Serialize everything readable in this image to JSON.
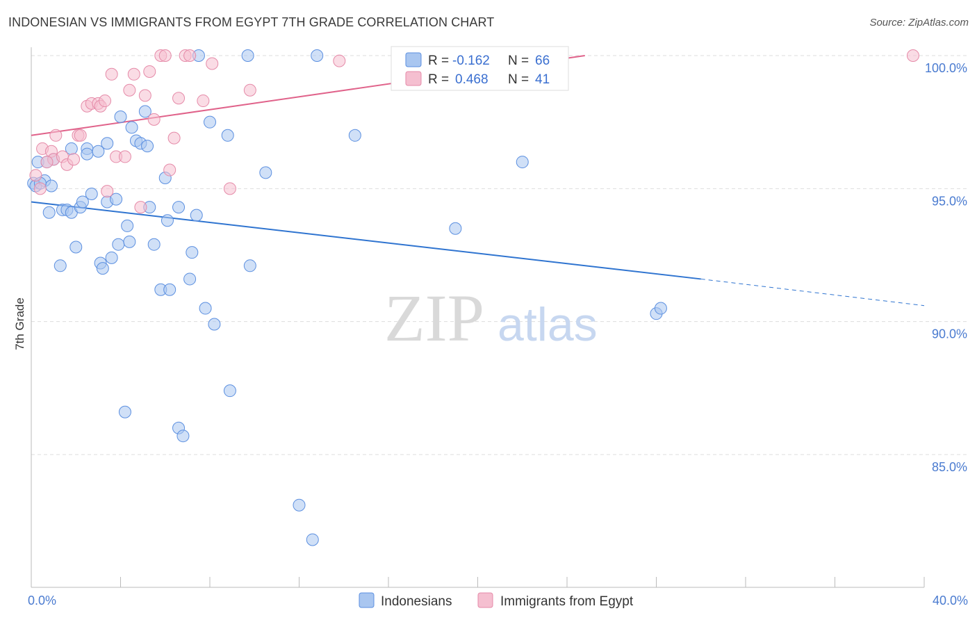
{
  "title": "INDONESIAN VS IMMIGRANTS FROM EGYPT 7TH GRADE CORRELATION CHART",
  "source": "Source: ZipAtlas.com",
  "watermark": {
    "zip": "ZIP",
    "atlas": "atlas"
  },
  "colors": {
    "blue": "#5b8fe0",
    "blue_fill": "#a9c6f0",
    "blue_line": "#2f74d0",
    "pink": "#e58aa8",
    "pink_fill": "#f5bfd0",
    "pink_line": "#e0628a",
    "axis_label": "#4a7bd0",
    "grid": "#dddddd"
  },
  "legend": {
    "rows": [
      {
        "r_label": "R =",
        "r_value": "-0.162",
        "n_label": "N =",
        "n_value": "66",
        "series": "blue"
      },
      {
        "r_label": "R =",
        "r_value": "0.468",
        "n_label": "N =",
        "n_value": "41",
        "series": "pink"
      }
    ]
  },
  "bottom_legend": [
    {
      "label": "Indonesians",
      "series": "blue"
    },
    {
      "label": "Immigrants from Egypt",
      "series": "pink"
    }
  ],
  "chart_data": {
    "type": "scatter",
    "ylabel": "7th Grade",
    "xlim": [
      0,
      40
    ],
    "ylim": [
      80.0,
      100.7
    ],
    "x_tick_labels": [
      {
        "value": 0,
        "label": "0.0%"
      },
      {
        "value": 40,
        "label": "40.0%"
      }
    ],
    "y_ticks": [
      {
        "value": 100,
        "label": "100.0%"
      },
      {
        "value": 95,
        "label": "95.0%"
      },
      {
        "value": 90,
        "label": "90.0%"
      },
      {
        "value": 85,
        "label": "85.0%"
      }
    ],
    "series": [
      {
        "name": "Indonesians",
        "color": "blue",
        "trend": {
          "x": [
            0,
            30
          ],
          "y": [
            94.5,
            91.6
          ]
        },
        "trend_dashed": {
          "x": [
            30,
            40
          ],
          "y": [
            91.6,
            90.6
          ]
        },
        "points": [
          [
            0.1,
            95.2
          ],
          [
            0.2,
            95.1
          ],
          [
            0.3,
            96.0
          ],
          [
            0.6,
            95.3
          ],
          [
            0.7,
            96.0
          ],
          [
            0.8,
            94.1
          ],
          [
            0.9,
            95.1
          ],
          [
            1.3,
            92.1
          ],
          [
            1.4,
            94.2
          ],
          [
            1.6,
            94.2
          ],
          [
            1.8,
            96.5
          ],
          [
            1.8,
            94.1
          ],
          [
            2.0,
            92.8
          ],
          [
            2.2,
            94.3
          ],
          [
            2.3,
            94.5
          ],
          [
            2.5,
            96.5
          ],
          [
            2.5,
            96.3
          ],
          [
            2.7,
            94.8
          ],
          [
            3.1,
            92.2
          ],
          [
            3.2,
            92.0
          ],
          [
            3.4,
            94.5
          ],
          [
            3.4,
            96.7
          ],
          [
            3.6,
            92.4
          ],
          [
            3.8,
            94.6
          ],
          [
            3.9,
            92.9
          ],
          [
            4.0,
            97.7
          ],
          [
            4.2,
            86.6
          ],
          [
            4.3,
            93.6
          ],
          [
            4.4,
            93.0
          ],
          [
            4.5,
            97.3
          ],
          [
            4.7,
            96.8
          ],
          [
            4.9,
            96.7
          ],
          [
            5.1,
            97.9
          ],
          [
            5.2,
            96.6
          ],
          [
            5.3,
            94.3
          ],
          [
            5.5,
            92.9
          ],
          [
            5.8,
            91.2
          ],
          [
            6.0,
            95.4
          ],
          [
            6.1,
            93.8
          ],
          [
            6.2,
            91.2
          ],
          [
            6.6,
            94.3
          ],
          [
            6.6,
            86.0
          ],
          [
            6.8,
            85.7
          ],
          [
            7.1,
            91.6
          ],
          [
            7.2,
            92.6
          ],
          [
            7.4,
            94.0
          ],
          [
            7.5,
            100.0
          ],
          [
            7.8,
            90.5
          ],
          [
            8.0,
            97.5
          ],
          [
            8.2,
            89.9
          ],
          [
            8.8,
            97.0
          ],
          [
            8.9,
            87.4
          ],
          [
            9.7,
            100.0
          ],
          [
            9.8,
            92.1
          ],
          [
            10.5,
            95.6
          ],
          [
            12.0,
            83.1
          ],
          [
            12.6,
            81.8
          ],
          [
            12.8,
            100.0
          ],
          [
            14.5,
            97.0
          ],
          [
            19.0,
            93.5
          ],
          [
            22.0,
            96.0
          ],
          [
            28.0,
            90.3
          ],
          [
            28.2,
            90.5
          ],
          [
            0.4,
            95.2
          ],
          [
            1.0,
            96.1
          ],
          [
            3.0,
            96.4
          ]
        ]
      },
      {
        "name": "Immigrants from Egypt",
        "color": "pink",
        "trend": {
          "x": [
            0,
            24.8
          ],
          "y": [
            97.0,
            100.0
          ]
        },
        "points": [
          [
            0.2,
            95.5
          ],
          [
            0.4,
            95.0
          ],
          [
            0.5,
            96.5
          ],
          [
            0.9,
            96.4
          ],
          [
            1.0,
            96.1
          ],
          [
            1.1,
            97.0
          ],
          [
            1.4,
            96.2
          ],
          [
            1.6,
            95.9
          ],
          [
            1.9,
            96.1
          ],
          [
            2.1,
            97.0
          ],
          [
            2.2,
            97.0
          ],
          [
            2.5,
            98.1
          ],
          [
            2.7,
            98.2
          ],
          [
            3.0,
            98.2
          ],
          [
            3.1,
            98.1
          ],
          [
            3.3,
            98.3
          ],
          [
            3.4,
            94.9
          ],
          [
            3.6,
            99.3
          ],
          [
            3.8,
            96.2
          ],
          [
            4.2,
            96.2
          ],
          [
            4.4,
            98.7
          ],
          [
            4.6,
            99.3
          ],
          [
            4.9,
            94.3
          ],
          [
            5.1,
            98.5
          ],
          [
            5.3,
            99.4
          ],
          [
            5.5,
            97.6
          ],
          [
            5.8,
            100.0
          ],
          [
            6.0,
            100.0
          ],
          [
            6.2,
            95.7
          ],
          [
            6.4,
            96.9
          ],
          [
            6.6,
            98.4
          ],
          [
            6.9,
            100.0
          ],
          [
            7.1,
            100.0
          ],
          [
            7.7,
            98.3
          ],
          [
            8.1,
            99.7
          ],
          [
            8.9,
            95.0
          ],
          [
            9.8,
            98.7
          ],
          [
            13.8,
            99.8
          ],
          [
            18.9,
            100.0
          ],
          [
            39.5,
            100.0
          ],
          [
            0.7,
            96.0
          ]
        ]
      }
    ]
  }
}
